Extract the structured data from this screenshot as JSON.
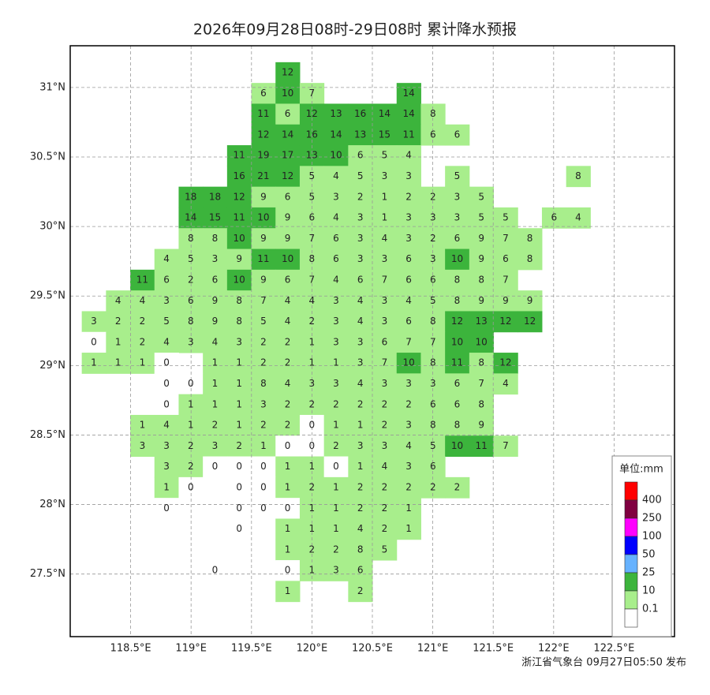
{
  "title": "2026年09月28日08时-29日08时 累计降水预报",
  "footer": "浙江省气象台 09月27日05:50 发布",
  "map": {
    "xlim": [
      118.0,
      123.0
    ],
    "ylim": [
      27.05,
      31.3
    ],
    "xticks": [
      {
        "value": 118.5,
        "label": "118.5°E"
      },
      {
        "value": 119,
        "label": "119°E"
      },
      {
        "value": 119.5,
        "label": "119.5°E"
      },
      {
        "value": 120,
        "label": "120°E"
      },
      {
        "value": 120.5,
        "label": "120.5°E"
      },
      {
        "value": 121,
        "label": "121°E"
      },
      {
        "value": 121.5,
        "label": "121.5°E"
      },
      {
        "value": 122,
        "label": "122°E"
      },
      {
        "value": 122.5,
        "label": "122.5°E"
      }
    ],
    "yticks": [
      {
        "value": 27.5,
        "label": "27.5°N"
      },
      {
        "value": 28,
        "label": "28°N"
      },
      {
        "value": 28.5,
        "label": "28.5°N"
      },
      {
        "value": 29,
        "label": "29°N"
      },
      {
        "value": 29.5,
        "label": "29.5°N"
      },
      {
        "value": 30,
        "label": "30°N"
      },
      {
        "value": 30.5,
        "label": "30.5°N"
      },
      {
        "value": 31,
        "label": "31°N"
      }
    ],
    "grid": true,
    "rows": [
      [
        null,
        null,
        null,
        null,
        null,
        null,
        null,
        null,
        12,
        null,
        null,
        null,
        null,
        null,
        null,
        null,
        null,
        null,
        null,
        null,
        null
      ],
      [
        null,
        null,
        null,
        null,
        null,
        null,
        null,
        6,
        10,
        7,
        null,
        null,
        null,
        14,
        null,
        null,
        null,
        null,
        null,
        null,
        null
      ],
      [
        null,
        null,
        null,
        null,
        null,
        null,
        null,
        11,
        6,
        12,
        13,
        16,
        14,
        14,
        8,
        null,
        null,
        null,
        null,
        null,
        null
      ],
      [
        null,
        null,
        null,
        null,
        null,
        null,
        null,
        12,
        14,
        16,
        14,
        13,
        15,
        11,
        6,
        6,
        null,
        null,
        null,
        null,
        null
      ],
      [
        null,
        null,
        null,
        null,
        null,
        null,
        11,
        19,
        17,
        13,
        10,
        6,
        5,
        4,
        null,
        null,
        null,
        null,
        null,
        null,
        null
      ],
      [
        null,
        null,
        null,
        null,
        null,
        null,
        16,
        21,
        12,
        5,
        4,
        5,
        3,
        3,
        null,
        5,
        null,
        null,
        null,
        null,
        8
      ],
      [
        null,
        null,
        null,
        null,
        18,
        18,
        12,
        9,
        6,
        5,
        3,
        2,
        1,
        2,
        2,
        3,
        5,
        null,
        null,
        null,
        null
      ],
      [
        null,
        null,
        null,
        null,
        14,
        15,
        11,
        10,
        9,
        6,
        4,
        3,
        1,
        3,
        3,
        3,
        5,
        5,
        null,
        6,
        4
      ],
      [
        null,
        null,
        null,
        null,
        8,
        8,
        10,
        9,
        9,
        7,
        6,
        3,
        4,
        3,
        2,
        6,
        9,
        7,
        8,
        null,
        null
      ],
      [
        null,
        null,
        null,
        4,
        5,
        3,
        9,
        11,
        10,
        8,
        6,
        3,
        3,
        6,
        3,
        10,
        9,
        6,
        8,
        null,
        null
      ],
      [
        null,
        null,
        11,
        6,
        2,
        6,
        10,
        9,
        6,
        7,
        4,
        6,
        7,
        6,
        6,
        8,
        8,
        7,
        null,
        null,
        null
      ],
      [
        null,
        4,
        4,
        3,
        6,
        9,
        8,
        7,
        4,
        4,
        3,
        4,
        3,
        4,
        5,
        8,
        9,
        9,
        9,
        null,
        null
      ],
      [
        3,
        2,
        2,
        5,
        8,
        9,
        8,
        5,
        4,
        2,
        3,
        4,
        3,
        6,
        8,
        12,
        13,
        12,
        12,
        null,
        null
      ],
      [
        0,
        1,
        2,
        4,
        3,
        4,
        3,
        2,
        2,
        1,
        3,
        3,
        6,
        7,
        7,
        10,
        10,
        null,
        null,
        null,
        null
      ],
      [
        1,
        1,
        1,
        0,
        null,
        1,
        1,
        2,
        2,
        1,
        1,
        3,
        7,
        10,
        8,
        11,
        8,
        12,
        null,
        null,
        null
      ],
      [
        null,
        null,
        null,
        0,
        0,
        1,
        1,
        8,
        4,
        3,
        3,
        4,
        3,
        3,
        3,
        6,
        7,
        4,
        null,
        null,
        null
      ],
      [
        null,
        null,
        null,
        0,
        1,
        1,
        1,
        3,
        2,
        2,
        2,
        2,
        2,
        2,
        6,
        6,
        8,
        null,
        null,
        null,
        null
      ],
      [
        null,
        null,
        1,
        4,
        1,
        2,
        1,
        2,
        2,
        0,
        1,
        1,
        2,
        3,
        8,
        8,
        9,
        null,
        null,
        null,
        null
      ],
      [
        null,
        null,
        3,
        3,
        2,
        3,
        2,
        1,
        0,
        0,
        2,
        3,
        3,
        4,
        5,
        10,
        11,
        7,
        null,
        null,
        null
      ],
      [
        null,
        null,
        null,
        3,
        2,
        0,
        0,
        0,
        1,
        1,
        0,
        1,
        4,
        3,
        6,
        null,
        null,
        null,
        null,
        null,
        null
      ],
      [
        null,
        null,
        null,
        1,
        0,
        null,
        0,
        0,
        1,
        2,
        1,
        2,
        2,
        2,
        2,
        2,
        null,
        null,
        null,
        null,
        null
      ],
      [
        null,
        null,
        null,
        0,
        null,
        null,
        0,
        0,
        0,
        1,
        1,
        2,
        2,
        1,
        null,
        null,
        null,
        null,
        null,
        null,
        null
      ],
      [
        null,
        null,
        null,
        null,
        null,
        null,
        0,
        null,
        1,
        1,
        1,
        4,
        2,
        1,
        null,
        null,
        null,
        null,
        null,
        null,
        null
      ],
      [
        null,
        null,
        null,
        null,
        null,
        null,
        null,
        null,
        1,
        2,
        2,
        8,
        5,
        null,
        null,
        null,
        null,
        null,
        null,
        null,
        null
      ],
      [
        null,
        null,
        null,
        null,
        null,
        0,
        null,
        null,
        0,
        1,
        3,
        6,
        null,
        null,
        null,
        null,
        null,
        null,
        null,
        null,
        null
      ],
      [
        null,
        null,
        null,
        null,
        null,
        null,
        null,
        null,
        1,
        null,
        null,
        2,
        null,
        null,
        null,
        null,
        null,
        null,
        null,
        null,
        null
      ]
    ]
  },
  "legend": {
    "title": "单位:mm",
    "thresholds": [
      400,
      250,
      100,
      50,
      25,
      10,
      0.1
    ],
    "colors": [
      "#ff0000",
      "#800040",
      "#ff00ff",
      "#0000ff",
      "#66b2ff",
      "#3cb43c",
      "#a8ee8c",
      "#ffffff"
    ]
  }
}
